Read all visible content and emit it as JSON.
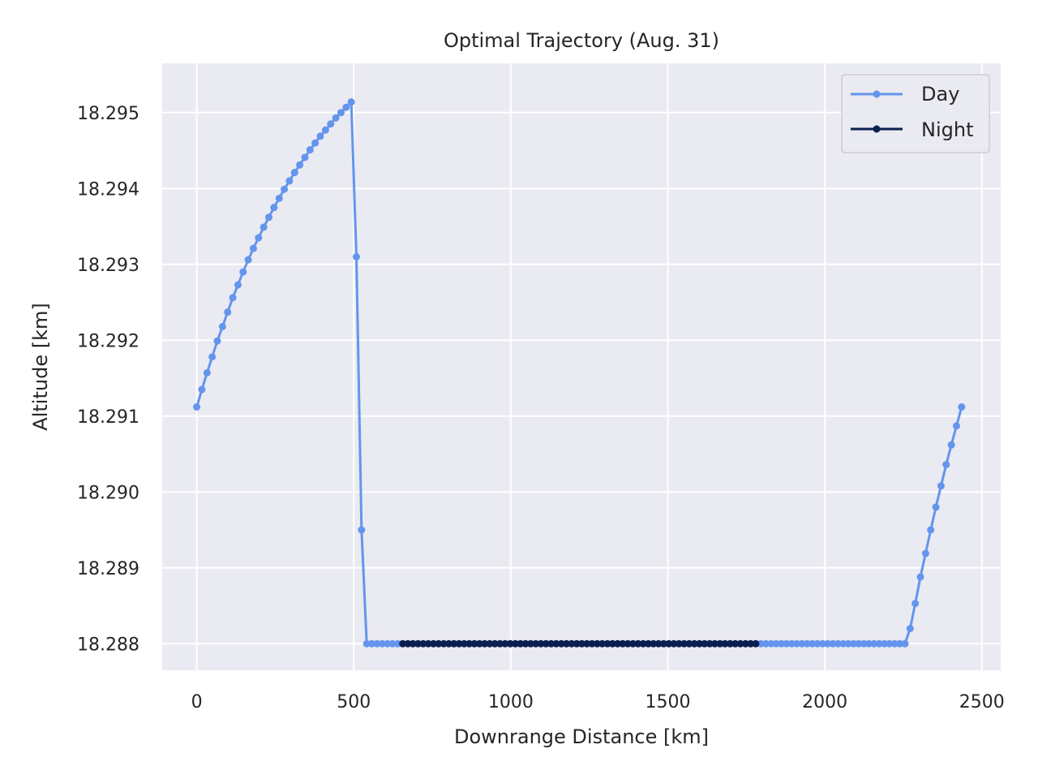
{
  "chart_data": {
    "type": "line",
    "title": "Optimal Trajectory (Aug. 31)",
    "xlabel": "Downrange Distance [km]",
    "ylabel": "Altitude [km]",
    "xlim": [
      -110,
      2560
    ],
    "ylim": [
      18.28765,
      18.29565
    ],
    "xticks": [
      0,
      500,
      1000,
      1500,
      2000,
      2500
    ],
    "xtick_labels": [
      "0",
      "500",
      "1000",
      "1500",
      "2000",
      "2500"
    ],
    "yticks": [
      18.288,
      18.289,
      18.29,
      18.291,
      18.292,
      18.293,
      18.294,
      18.295
    ],
    "ytick_labels": [
      "18.288",
      "18.289",
      "18.290",
      "18.291",
      "18.292",
      "18.293",
      "18.294",
      "18.295"
    ],
    "grid": true,
    "legend_position": "top-right",
    "colors": {
      "background": "#eaeaf2",
      "grid": "#ffffff",
      "day": "#6495ed",
      "night": "#0b1f4f"
    },
    "series": [
      {
        "name": "Day",
        "color": "#6495ed",
        "x": [
          0,
          16.4,
          32.8,
          49.2,
          65.6,
          82,
          98.4,
          114.8,
          131.2,
          147.6,
          164,
          180.4,
          196.8,
          213.2,
          229.6,
          246,
          262.4,
          278.8,
          295.2,
          311.6,
          328,
          344.4,
          360.8,
          377.2,
          393.6,
          410,
          426.4,
          442.8,
          459.2,
          475.6,
          492,
          508.4,
          524.8,
          541.2,
          557.6,
          574,
          590.4,
          606.8,
          623.2,
          639.6,
          1796,
          1812.4,
          1828.8,
          1845.2,
          1861.6,
          1878,
          1894.4,
          1910.8,
          1927.2,
          1943.6,
          1960,
          1976.4,
          1992.8,
          2009.2,
          2025.6,
          2042,
          2058.4,
          2074.8,
          2091.2,
          2107.6,
          2124,
          2140.4,
          2156.8,
          2173.2,
          2189.6,
          2206,
          2222.4,
          2238.8,
          2255.2,
          2271.6,
          2288,
          2304.4,
          2320.8,
          2337.2,
          2353.6,
          2370,
          2386.4,
          2402.8,
          2419.2,
          2435.6
        ],
        "y": [
          18.29112,
          18.29135,
          18.29157,
          18.29178,
          18.29199,
          18.29218,
          18.29237,
          18.29256,
          18.29273,
          18.2929,
          18.29306,
          18.29321,
          18.29335,
          18.29349,
          18.29362,
          18.29375,
          18.29387,
          18.29399,
          18.2941,
          18.29421,
          18.29431,
          18.29441,
          18.29451,
          18.2946,
          18.29469,
          18.29477,
          18.29485,
          18.29493,
          18.295,
          18.29507,
          18.29514,
          18.2931,
          18.2895,
          18.288,
          18.288,
          18.288,
          18.288,
          18.288,
          18.288,
          18.288,
          18.288,
          18.288,
          18.288,
          18.288,
          18.288,
          18.288,
          18.288,
          18.288,
          18.288,
          18.288,
          18.288,
          18.288,
          18.288,
          18.288,
          18.288,
          18.288,
          18.288,
          18.288,
          18.288,
          18.288,
          18.288,
          18.288,
          18.288,
          18.288,
          18.288,
          18.288,
          18.288,
          18.288,
          18.288,
          18.2882,
          18.28853,
          18.28888,
          18.28919,
          18.2895,
          18.2898,
          18.29008,
          18.29036,
          18.29062,
          18.29087,
          18.29112
        ],
        "segment_break_after_index": 39
      },
      {
        "name": "Night",
        "color": "#0b1f4f",
        "x_start": 656,
        "x_end": 1780,
        "point_count": 70,
        "y_constant": 18.288
      }
    ]
  }
}
